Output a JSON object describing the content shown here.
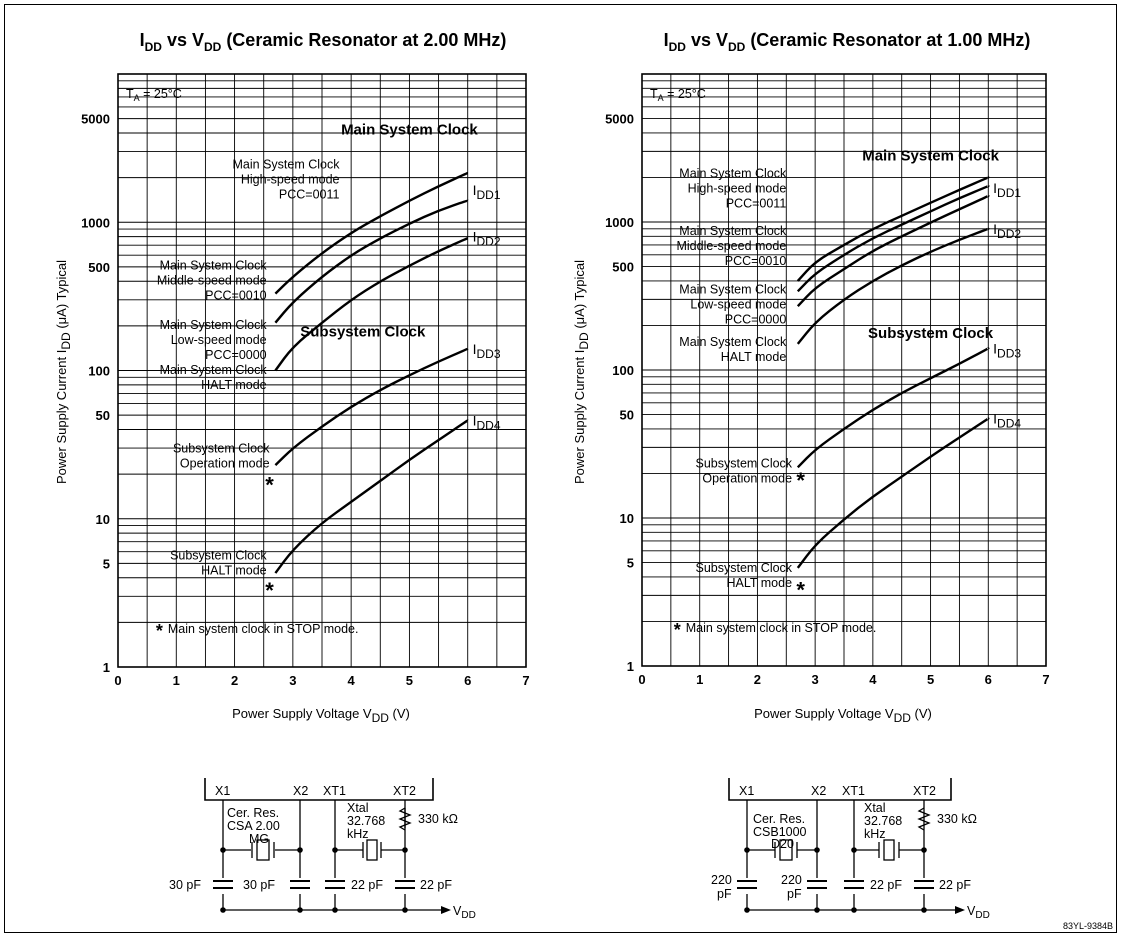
{
  "chart_data": [
    {
      "type": "line",
      "title_parts": {
        "i": "I",
        "i_sub": "DD",
        "vs": " vs V",
        "v_sub": "DD",
        "rest": " (Ceramic Resonator at 2.00 MHz)"
      },
      "xlabel_parts": {
        "main": "Power Supply Voltage V",
        "sub": "DD",
        "unit": " (V)"
      },
      "ylabel_parts": {
        "main": "Power Supply Current I",
        "sub": "DD",
        "unit": " (μA) Typical"
      },
      "xlim": [
        0,
        7
      ],
      "ylim": [
        1,
        10000
      ],
      "yscale": "log",
      "grid": true,
      "x_ticks": [
        "0",
        "1",
        "2",
        "3",
        "4",
        "5",
        "6",
        "7"
      ],
      "y_ticks": [
        "1",
        "5",
        "10",
        "50",
        "100",
        "500",
        "1000",
        "5000"
      ],
      "y_tick_values": [
        1,
        5,
        10,
        50,
        100,
        500,
        1000,
        5000
      ],
      "ta_label": {
        "t": "T",
        "sub": "A",
        "rest": " = 25°C"
      },
      "group_labels": [
        {
          "text": "Main System Clock",
          "x": 5.0,
          "y": 3900
        },
        {
          "text": "Subsystem Clock",
          "x": 4.2,
          "y": 170
        }
      ],
      "annotations": [
        {
          "lines": [
            "Main System Clock",
            "High-speed mode",
            "PCC=0011"
          ],
          "x": 3.8,
          "y": 2300
        },
        {
          "lines": [
            "Main System Clock",
            "Middle-speed mode",
            "PCC=0010"
          ],
          "x": 2.55,
          "y": 480
        },
        {
          "lines": [
            "Main System Clock",
            "Low-speed mode",
            "PCC=0000"
          ],
          "x": 2.55,
          "y": 190
        },
        {
          "lines": [
            "Main System Clock",
            "HALT mode"
          ],
          "x": 2.55,
          "y": 95
        },
        {
          "lines": [
            "Subsystem Clock",
            "Operation mode"
          ],
          "x": 2.6,
          "y": 28
        },
        {
          "lines": [
            "Subsystem Clock",
            "HALT mode"
          ],
          "x": 2.55,
          "y": 5.3
        }
      ],
      "series": [
        {
          "name": "IDD1",
          "x": [
            2.7,
            3,
            3.5,
            4,
            4.5,
            5,
            5.5,
            6
          ],
          "y": [
            330,
            430,
            620,
            850,
            1100,
            1400,
            1750,
            2150
          ]
        },
        {
          "name": "IDD1",
          "x": [
            2.7,
            3,
            3.5,
            4,
            4.5,
            5,
            5.5,
            6
          ],
          "y": [
            210,
            290,
            430,
            600,
            780,
            980,
            1200,
            1400
          ]
        },
        {
          "name": "IDD2",
          "x": [
            2.7,
            3,
            3.5,
            4,
            4.5,
            5,
            5.5,
            6
          ],
          "y": [
            100,
            145,
            210,
            300,
            400,
            510,
            640,
            780
          ]
        },
        {
          "name": "IDD3",
          "x": [
            2.7,
            3,
            3.5,
            4,
            4.5,
            5,
            5.5,
            6
          ],
          "y": [
            23,
            30,
            42,
            57,
            74,
            93,
            115,
            140
          ]
        },
        {
          "name": "IDD4",
          "x": [
            2.7,
            3,
            3.5,
            4,
            4.5,
            5,
            5.5,
            6
          ],
          "y": [
            4.3,
            6.2,
            9.4,
            13,
            18,
            25,
            34,
            46
          ]
        }
      ],
      "series_labels": [
        {
          "main": "I",
          "sub": "DD1",
          "x": 6.05,
          "y": 1650
        },
        {
          "main": "I",
          "sub": "DD2",
          "x": 6.05,
          "y": 800
        },
        {
          "main": "I",
          "sub": "DD3",
          "x": 6.05,
          "y": 140
        },
        {
          "main": "I",
          "sub": "DD4",
          "x": 6.05,
          "y": 46
        }
      ],
      "stars": [
        {
          "x": 2.6,
          "y": 17
        },
        {
          "x": 2.6,
          "y": 3.3
        }
      ],
      "footnote": {
        "star": "*",
        "text": "Main system clock in STOP mode.",
        "x": 0.65,
        "y": 1.7
      }
    },
    {
      "type": "line",
      "title_parts": {
        "i": "I",
        "i_sub": "DD",
        "vs": " vs V",
        "v_sub": "DD",
        "rest": " (Ceramic Resonator at 1.00 MHz)"
      },
      "xlabel_parts": {
        "main": "Power Supply Voltage V",
        "sub": "DD",
        "unit": " (V)"
      },
      "ylabel_parts": {
        "main": "Power Supply Current I",
        "sub": "DD",
        "unit": " (μA) Typical"
      },
      "xlim": [
        0,
        7
      ],
      "ylim": [
        1,
        10000
      ],
      "yscale": "log",
      "grid": true,
      "x_ticks": [
        "0",
        "1",
        "2",
        "3",
        "4",
        "5",
        "6",
        "7"
      ],
      "y_ticks": [
        "1",
        "5",
        "10",
        "50",
        "100",
        "500",
        "1000",
        "5000"
      ],
      "y_tick_values": [
        1,
        5,
        10,
        50,
        100,
        500,
        1000,
        5000
      ],
      "ta_label": {
        "t": "T",
        "sub": "A",
        "rest": " = 25°C"
      },
      "group_labels": [
        {
          "text": "Main System Clock",
          "x": 5.0,
          "y": 2600
        },
        {
          "text": "Subsystem Clock",
          "x": 5.0,
          "y": 165
        }
      ],
      "annotations": [
        {
          "lines": [
            "Main System Clock",
            "High-speed mode",
            "PCC=0011"
          ],
          "x": 2.5,
          "y": 2000
        },
        {
          "lines": [
            "Main System Clock",
            "Middle-speed mode",
            "PCC=0010"
          ],
          "x": 2.5,
          "y": 820
        },
        {
          "lines": [
            "Main System Clock",
            "Low-speed mode",
            "PCC=0000"
          ],
          "x": 2.5,
          "y": 330
        },
        {
          "lines": [
            "Main System Clock",
            "HALT mode"
          ],
          "x": 2.5,
          "y": 145
        },
        {
          "lines": [
            "Subsystem Clock",
            "Operation mode"
          ],
          "x": 2.6,
          "y": 22
        },
        {
          "lines": [
            "Subsystem Clock",
            "HALT mode"
          ],
          "x": 2.6,
          "y": 4.3
        }
      ],
      "series": [
        {
          "name": "IDD1",
          "x": [
            2.7,
            3,
            3.5,
            4,
            4.5,
            5,
            5.5,
            6
          ],
          "y": [
            400,
            540,
            700,
            900,
            1100,
            1350,
            1650,
            2000
          ]
        },
        {
          "name": "IDD1",
          "x": [
            2.7,
            3,
            3.5,
            4,
            4.5,
            5,
            5.5,
            6
          ],
          "y": [
            340,
            450,
            600,
            780,
            960,
            1180,
            1450,
            1750
          ]
        },
        {
          "name": "IDD1",
          "x": [
            2.7,
            3,
            3.5,
            4,
            4.5,
            5,
            5.5,
            6
          ],
          "y": [
            270,
            360,
            480,
            640,
            800,
            990,
            1220,
            1500
          ]
        },
        {
          "name": "IDD2",
          "x": [
            2.7,
            3,
            3.5,
            4,
            4.5,
            5,
            5.5,
            6
          ],
          "y": [
            150,
            210,
            300,
            400,
            510,
            630,
            760,
            900
          ]
        },
        {
          "name": "IDD3",
          "x": [
            2.7,
            3,
            3.5,
            4,
            4.5,
            5,
            5.5,
            6
          ],
          "y": [
            22,
            29,
            40,
            54,
            70,
            88,
            110,
            140
          ]
        },
        {
          "name": "IDD4",
          "x": [
            2.7,
            3,
            3.5,
            4,
            4.5,
            5,
            5.5,
            6
          ],
          "y": [
            4.6,
            6.6,
            9.8,
            14,
            19,
            26,
            35,
            47
          ]
        }
      ],
      "series_labels": [
        {
          "main": "I",
          "sub": "DD1",
          "x": 6.05,
          "y": 1700
        },
        {
          "main": "I",
          "sub": "DD2",
          "x": 6.05,
          "y": 900
        },
        {
          "main": "I",
          "sub": "DD3",
          "x": 6.05,
          "y": 140
        },
        {
          "main": "I",
          "sub": "DD4",
          "x": 6.05,
          "y": 47
        }
      ],
      "stars": [
        {
          "x": 2.75,
          "y": 18
        },
        {
          "x": 2.75,
          "y": 3.3
        }
      ],
      "footnote": {
        "star": "*",
        "text": "Main system clock in STOP mode.",
        "x": 0.55,
        "y": 1.7
      }
    }
  ],
  "circuits": [
    {
      "pins": [
        "X1",
        "X2",
        "XT1",
        "XT2"
      ],
      "resonator": [
        "Cer. Res.",
        "CSA 2.00",
        "MG"
      ],
      "xtal": [
        "Xtal",
        "32.768",
        "kHz"
      ],
      "resistor": "330 kΩ",
      "cap_left": [
        "30 pF"
      ],
      "cap_mid": [
        "30 pF"
      ],
      "cap_x1": "22 pF",
      "cap_x2": "22 pF",
      "vdd_main": "V",
      "vdd_sub": "DD"
    },
    {
      "pins": [
        "X1",
        "X2",
        "XT1",
        "XT2"
      ],
      "resonator": [
        "Cer. Res.",
        "CSB1000",
        "D20"
      ],
      "xtal": [
        "Xtal",
        "32.768",
        "kHz"
      ],
      "resistor": "330 kΩ",
      "cap_left": [
        "220",
        "pF"
      ],
      "cap_mid": [
        "220",
        "pF"
      ],
      "cap_x1": "22 pF",
      "cap_x2": "22 pF",
      "vdd_main": "V",
      "vdd_sub": "DD"
    }
  ],
  "doc_code": "83YL-9384B"
}
